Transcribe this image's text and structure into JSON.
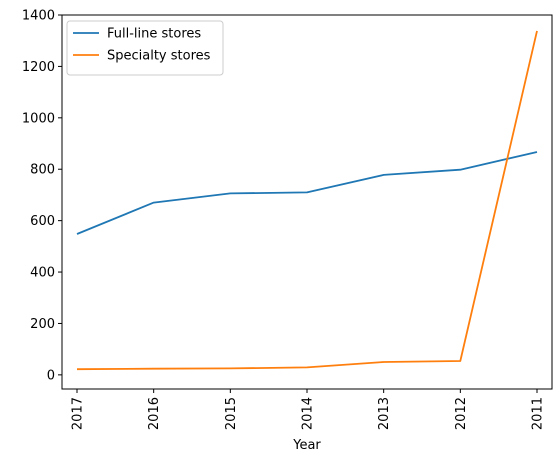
{
  "chart_data": {
    "type": "line",
    "title": "",
    "xlabel": "Year",
    "ylabel": "",
    "categories": [
      "2017",
      "2016",
      "2015",
      "2014",
      "2013",
      "2012",
      "2011"
    ],
    "ylim": [
      -55,
      1400
    ],
    "yticks": [
      0,
      200,
      400,
      600,
      800,
      1000,
      1200,
      1400
    ],
    "grid": false,
    "legend_position": "top-left",
    "series": [
      {
        "name": "Full-line stores",
        "color": "#1f77b4",
        "values": [
          548,
          670,
          706,
          710,
          778,
          798,
          867
        ]
      },
      {
        "name": "Specialty stores",
        "color": "#ff7f0e",
        "values": [
          22,
          24,
          25,
          29,
          50,
          54,
          1338
        ]
      }
    ]
  }
}
